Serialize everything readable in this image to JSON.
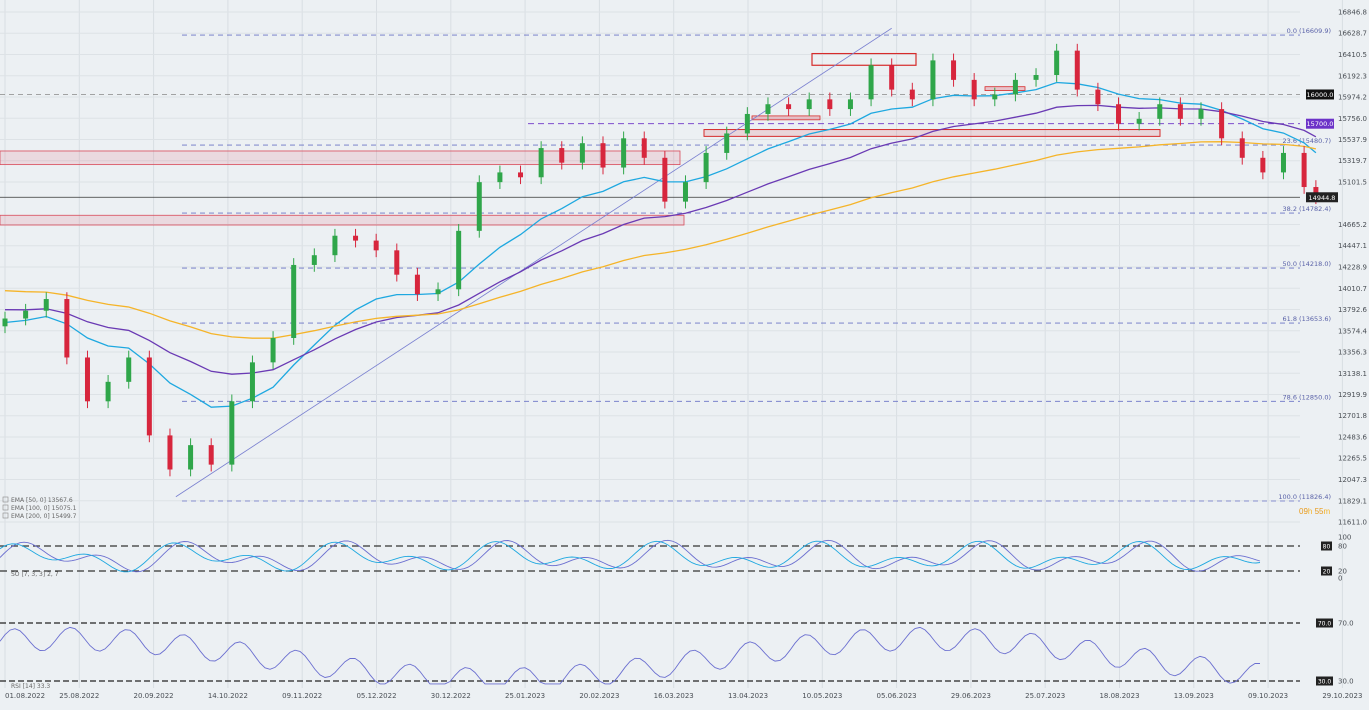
{
  "chart_data": {
    "type": "candlestick",
    "x_tick_labels": [
      "01.08.2022",
      "25.08.2022",
      "20.09.2022",
      "14.10.2022",
      "09.11.2022",
      "05.12.2022",
      "30.12.2022",
      "25.01.2023",
      "20.02.2023",
      "16.03.2023",
      "13.04.2023",
      "10.05.2023",
      "05.06.2023",
      "29.06.2023",
      "25.07.2023",
      "18.08.2023",
      "13.09.2023",
      "09.10.2023",
      "29.10.2023"
    ],
    "y_tick_labels": [
      "16846.8",
      "16628.7",
      "16410.5",
      "16192.3",
      "15974.2",
      "15756.0",
      "15537.9",
      "15319.7",
      "15101.5",
      "14665.2",
      "14447.1",
      "14228.9",
      "14010.7",
      "13792.6",
      "13574.4",
      "13356.3",
      "13138.1",
      "12919.9",
      "12701.8",
      "12483.6",
      "12265.5",
      "12047.3",
      "11829.1",
      "11611.0"
    ],
    "ylim": [
      11611.0,
      16846.8
    ],
    "current_price": "14944.8",
    "price_tags": [
      {
        "text": "16000.0",
        "color": "#111111",
        "price": 16000.0
      },
      {
        "text": "15700.0",
        "color": "#6c33c8",
        "price": 15700.0
      }
    ],
    "fibonacci": [
      {
        "text": "0.0 (16609.9)",
        "price": 16609.9
      },
      {
        "text": "23.6 (15480.7)",
        "price": 15480.7
      },
      {
        "text": "38.2 (14782.4)",
        "price": 14782.4
      },
      {
        "text": "50.0 (14218.0)",
        "price": 14218.0
      },
      {
        "text": "61.8 (13653.6)",
        "price": 13653.6
      },
      {
        "text": "78.6 (12850.0)",
        "price": 12850.0
      },
      {
        "text": "100.0 (11826.4)",
        "price": 11826.4
      }
    ],
    "legend": [
      {
        "text": "EMA [50, 0]  13567.6",
        "color": "#1ea8e0"
      },
      {
        "text": "EMA [100, 0]  15075.1",
        "color": "#6a3ab4"
      },
      {
        "text": "EMA [200, 0]  15499.7",
        "color": "#f5b429"
      }
    ],
    "countdown": {
      "hours": "09",
      "h": "h",
      "minutes": "55",
      "m": "m"
    },
    "stochastic": {
      "label": "SO [7, 3, 3]  2, 7",
      "levels": [
        "100",
        "80",
        "20",
        "0"
      ],
      "tags": [
        "80",
        "20"
      ]
    },
    "rsi": {
      "label": "RSI [14]  33.3",
      "levels": [
        "70.0",
        "30.0"
      ]
    },
    "series": [
      {
        "date": "2022-08-01",
        "close": 13700
      },
      {
        "date": "2022-08-08",
        "close": 13780
      },
      {
        "date": "2022-08-15",
        "close": 13900
      },
      {
        "date": "2022-08-22",
        "close": 13300
      },
      {
        "date": "2022-08-29",
        "close": 12850
      },
      {
        "date": "2022-09-05",
        "close": 13050
      },
      {
        "date": "2022-09-12",
        "close": 13300
      },
      {
        "date": "2022-09-19",
        "close": 12500
      },
      {
        "date": "2022-09-26",
        "close": 12150
      },
      {
        "date": "2022-10-03",
        "close": 12400
      },
      {
        "date": "2022-10-10",
        "close": 12200
      },
      {
        "date": "2022-10-17",
        "close": 12850
      },
      {
        "date": "2022-10-24",
        "close": 13250
      },
      {
        "date": "2022-10-31",
        "close": 13500
      },
      {
        "date": "2022-11-07",
        "close": 14250
      },
      {
        "date": "2022-11-14",
        "close": 14350
      },
      {
        "date": "2022-11-21",
        "close": 14550
      },
      {
        "date": "2022-11-28",
        "close": 14500
      },
      {
        "date": "2022-12-05",
        "close": 14400
      },
      {
        "date": "2022-12-12",
        "close": 14150
      },
      {
        "date": "2022-12-19",
        "close": 13950
      },
      {
        "date": "2022-12-26",
        "close": 14000
      },
      {
        "date": "2023-01-02",
        "close": 14600
      },
      {
        "date": "2023-01-09",
        "close": 15100
      },
      {
        "date": "2023-01-16",
        "close": 15200
      },
      {
        "date": "2023-01-23",
        "close": 15150
      },
      {
        "date": "2023-01-30",
        "close": 15450
      },
      {
        "date": "2023-02-06",
        "close": 15300
      },
      {
        "date": "2023-02-13",
        "close": 15500
      },
      {
        "date": "2023-02-20",
        "close": 15250
      },
      {
        "date": "2023-02-27",
        "close": 15550
      },
      {
        "date": "2023-03-06",
        "close": 15350
      },
      {
        "date": "2023-03-13",
        "close": 14900
      },
      {
        "date": "2023-03-20",
        "close": 15100
      },
      {
        "date": "2023-03-27",
        "close": 15400
      },
      {
        "date": "2023-04-03",
        "close": 15600
      },
      {
        "date": "2023-04-10",
        "close": 15800
      },
      {
        "date": "2023-04-17",
        "close": 15900
      },
      {
        "date": "2023-04-24",
        "close": 15850
      },
      {
        "date": "2023-05-01",
        "close": 15950
      },
      {
        "date": "2023-05-08",
        "close": 15850
      },
      {
        "date": "2023-05-15",
        "close": 15950
      },
      {
        "date": "2023-05-22",
        "close": 16300
      },
      {
        "date": "2023-05-29",
        "close": 16050
      },
      {
        "date": "2023-06-05",
        "close": 15950
      },
      {
        "date": "2023-06-12",
        "close": 16350
      },
      {
        "date": "2023-06-19",
        "close": 16150
      },
      {
        "date": "2023-06-26",
        "close": 15950
      },
      {
        "date": "2023-07-03",
        "close": 16000
      },
      {
        "date": "2023-07-10",
        "close": 16150
      },
      {
        "date": "2023-07-17",
        "close": 16200
      },
      {
        "date": "2023-07-24",
        "close": 16450
      },
      {
        "date": "2023-07-31",
        "close": 16050
      },
      {
        "date": "2023-08-07",
        "close": 15900
      },
      {
        "date": "2023-08-14",
        "close": 15700
      },
      {
        "date": "2023-08-21",
        "close": 15750
      },
      {
        "date": "2023-08-28",
        "close": 15900
      },
      {
        "date": "2023-09-04",
        "close": 15750
      },
      {
        "date": "2023-09-11",
        "close": 15850
      },
      {
        "date": "2023-09-18",
        "close": 15550
      },
      {
        "date": "2023-09-25",
        "close": 15350
      },
      {
        "date": "2023-10-02",
        "close": 15200
      },
      {
        "date": "2023-10-09",
        "close": 15400
      },
      {
        "date": "2023-10-16",
        "close": 15050
      },
      {
        "date": "2023-10-20",
        "close": 14944.8
      }
    ]
  }
}
